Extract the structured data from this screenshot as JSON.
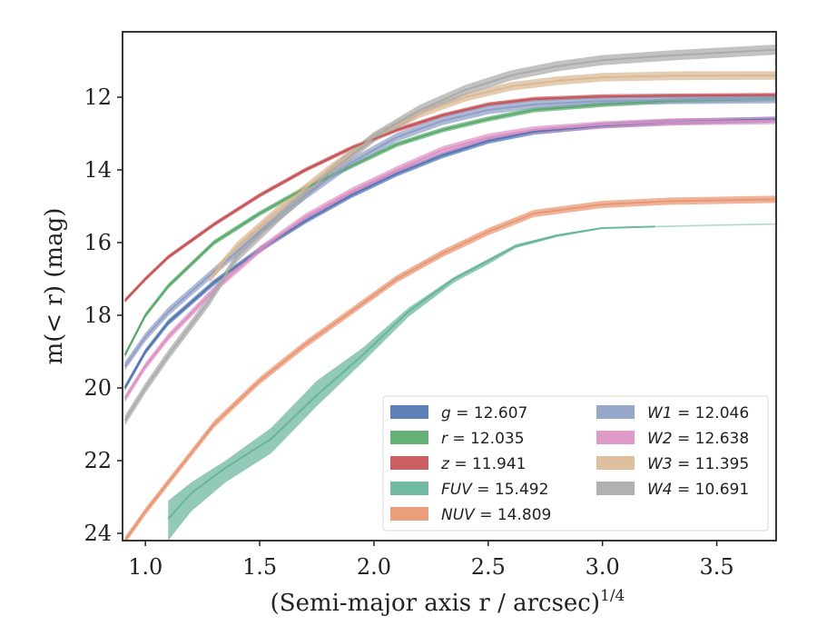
{
  "chart_data": {
    "type": "line",
    "xlabel": "(Semi-major axis r / arcsec)",
    "xlabel_exponent": "1/4",
    "ylabel": "m(< r) (mag)",
    "xlim": [
      0.9,
      3.76
    ],
    "ylim": [
      24.2,
      10.2
    ],
    "y_inverted": true,
    "grid": false,
    "legend_position": "lower-right",
    "x_ticks": [
      1.0,
      1.5,
      2.0,
      2.5,
      3.0,
      3.5
    ],
    "x_tick_labels": [
      "1.0",
      "1.5",
      "2.0",
      "2.5",
      "3.0",
      "3.5"
    ],
    "y_ticks": [
      12,
      14,
      16,
      18,
      20,
      22,
      24
    ],
    "y_tick_labels": [
      "12",
      "14",
      "16",
      "18",
      "20",
      "22",
      "24"
    ],
    "series": [
      {
        "name": "g",
        "total": "12.607",
        "color": "#4c72b0",
        "x": [
          0.91,
          1.0,
          1.1,
          1.3,
          1.5,
          1.7,
          1.9,
          2.1,
          2.3,
          2.5,
          2.7,
          3.0,
          3.3,
          3.76
        ],
        "y": [
          20.0,
          19.0,
          18.2,
          17.1,
          16.2,
          15.4,
          14.7,
          14.1,
          13.6,
          13.2,
          12.95,
          12.78,
          12.68,
          12.61
        ],
        "band": 0.08
      },
      {
        "name": "r",
        "total": "12.035",
        "color": "#55a868",
        "x": [
          0.91,
          1.0,
          1.1,
          1.3,
          1.5,
          1.7,
          1.9,
          2.1,
          2.3,
          2.5,
          2.7,
          3.0,
          3.3,
          3.76
        ],
        "y": [
          19.1,
          18.0,
          17.2,
          16.0,
          15.2,
          14.5,
          13.9,
          13.3,
          12.9,
          12.6,
          12.35,
          12.2,
          12.1,
          12.04
        ],
        "band": 0.07
      },
      {
        "name": "z",
        "total": "11.941",
        "color": "#c44e52",
        "x": [
          0.91,
          1.0,
          1.1,
          1.3,
          1.5,
          1.7,
          1.9,
          2.1,
          2.3,
          2.5,
          2.7,
          3.0,
          3.3,
          3.76
        ],
        "y": [
          17.6,
          17.0,
          16.4,
          15.5,
          14.7,
          14.0,
          13.4,
          12.9,
          12.5,
          12.2,
          12.05,
          11.98,
          11.96,
          11.94
        ],
        "band": 0.06
      },
      {
        "name": "FUV",
        "total": "15.492",
        "color": "#64b29a",
        "x": [
          1.1,
          1.2,
          1.35,
          1.55,
          1.75,
          1.95,
          2.15,
          2.35,
          2.5,
          2.62,
          2.8,
          3.0,
          3.23
        ],
        "y": [
          23.6,
          22.9,
          22.2,
          21.4,
          20.2,
          19.1,
          17.9,
          17.0,
          16.5,
          16.1,
          15.8,
          15.6,
          15.56
        ],
        "band_lo": [
          23.1,
          22.6,
          22.0,
          21.1,
          19.8,
          18.9,
          17.8,
          16.95,
          16.45,
          16.05,
          15.78,
          15.58,
          15.55
        ],
        "band_hi": [
          24.2,
          23.4,
          22.6,
          21.8,
          20.5,
          19.3,
          18.05,
          17.1,
          16.6,
          16.15,
          15.85,
          15.62,
          15.57
        ],
        "ext_x": [
          3.23,
          3.5,
          3.76
        ],
        "ext_y": [
          15.56,
          15.52,
          15.49
        ]
      },
      {
        "name": "NUV",
        "total": "14.809",
        "color": "#e8936e",
        "x": [
          0.91,
          1.0,
          1.1,
          1.3,
          1.5,
          1.7,
          1.9,
          2.1,
          2.3,
          2.5,
          2.7,
          3.0,
          3.3,
          3.76
        ],
        "y": [
          24.2,
          23.4,
          22.6,
          21.0,
          19.8,
          18.8,
          17.9,
          17.0,
          16.3,
          15.7,
          15.2,
          14.95,
          14.86,
          14.81
        ],
        "band": 0.1
      },
      {
        "name": "W1",
        "total": "12.046",
        "color": "#8c9dc4",
        "x": [
          0.91,
          1.0,
          1.1,
          1.3,
          1.5,
          1.7,
          1.9,
          2.1,
          2.3,
          2.5,
          2.7,
          3.0,
          3.3,
          3.76
        ],
        "y": [
          19.4,
          18.6,
          17.9,
          16.8,
          15.7,
          14.7,
          13.8,
          13.1,
          12.65,
          12.35,
          12.2,
          12.1,
          12.07,
          12.05
        ],
        "band": 0.12
      },
      {
        "name": "W2",
        "total": "12.638",
        "color": "#dd8fc2",
        "x": [
          0.91,
          1.0,
          1.1,
          1.3,
          1.5,
          1.7,
          1.9,
          2.1,
          2.3,
          2.5,
          2.7,
          3.0,
          3.3,
          3.76
        ],
        "y": [
          20.3,
          19.4,
          18.6,
          17.3,
          16.2,
          15.3,
          14.6,
          14.0,
          13.45,
          13.1,
          12.9,
          12.76,
          12.68,
          12.64
        ],
        "band": 0.1
      },
      {
        "name": "W3",
        "total": "11.395",
        "color": "#d9b792",
        "x": [
          1.28,
          1.4,
          1.6,
          1.8,
          2.0,
          2.2,
          2.4,
          2.6,
          2.8,
          3.0,
          3.3,
          3.76
        ],
        "y": [
          17.0,
          16.1,
          15.0,
          14.0,
          13.1,
          12.45,
          12.0,
          11.7,
          11.55,
          11.45,
          11.41,
          11.4
        ],
        "band": 0.12
      },
      {
        "name": "W4",
        "total": "10.691",
        "color": "#a8a8a8",
        "x": [
          0.91,
          1.0,
          1.1,
          1.28,
          1.4,
          1.6,
          1.8,
          2.0,
          2.2,
          2.4,
          2.6,
          2.8,
          3.0,
          3.3,
          3.76
        ],
        "y": [
          20.9,
          20.0,
          19.1,
          17.6,
          16.4,
          15.2,
          14.1,
          13.1,
          12.35,
          11.8,
          11.4,
          11.15,
          10.98,
          10.85,
          10.69
        ],
        "band": 0.14
      }
    ],
    "legend": [
      {
        "label_name": "g",
        "label_value": "12.607",
        "color": "#4c72b0"
      },
      {
        "label_name": "r",
        "label_value": "12.035",
        "color": "#55a868"
      },
      {
        "label_name": "z",
        "label_value": "11.941",
        "color": "#c44e52"
      },
      {
        "label_name": "FUV",
        "label_value": "15.492",
        "color": "#64b29a"
      },
      {
        "label_name": "NUV",
        "label_value": "14.809",
        "color": "#e8936e"
      },
      {
        "label_name": "W1",
        "label_value": "12.046",
        "color": "#8c9dc4"
      },
      {
        "label_name": "W2",
        "label_value": "12.638",
        "color": "#dd8fc2"
      },
      {
        "label_name": "W3",
        "label_value": "11.395",
        "color": "#d9b792"
      },
      {
        "label_name": "W4",
        "label_value": "10.691",
        "color": "#a8a8a8"
      }
    ]
  }
}
